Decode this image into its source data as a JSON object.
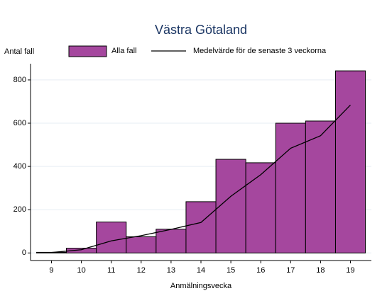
{
  "chart_data": {
    "type": "bar",
    "title": "Västra Götaland",
    "x_label": "Anmälningsvecka",
    "y_label": "Antal fall",
    "x": [
      9,
      10,
      11,
      12,
      13,
      14,
      15,
      16,
      17,
      18,
      19
    ],
    "series": [
      {
        "name": "Alla fall",
        "type": "bar",
        "color": "#a5479e",
        "values": [
          3,
          22,
          143,
          75,
          110,
          237,
          433,
          417,
          600,
          610,
          842
        ]
      },
      {
        "name": "Medelvärde för de senaste 3 veckorna",
        "type": "line",
        "color": "#000000",
        "values": [
          2,
          15,
          56,
          80,
          109,
          141,
          262,
          362,
          484,
          542,
          684
        ]
      }
    ],
    "xlim": [
      8.3,
      19.7
    ],
    "xticks": [
      9,
      10,
      11,
      12,
      13,
      14,
      15,
      16,
      17,
      18,
      19
    ],
    "ylim": [
      -35,
      875
    ],
    "yticks": [
      0,
      200,
      400,
      600,
      800
    ],
    "grid": true
  }
}
